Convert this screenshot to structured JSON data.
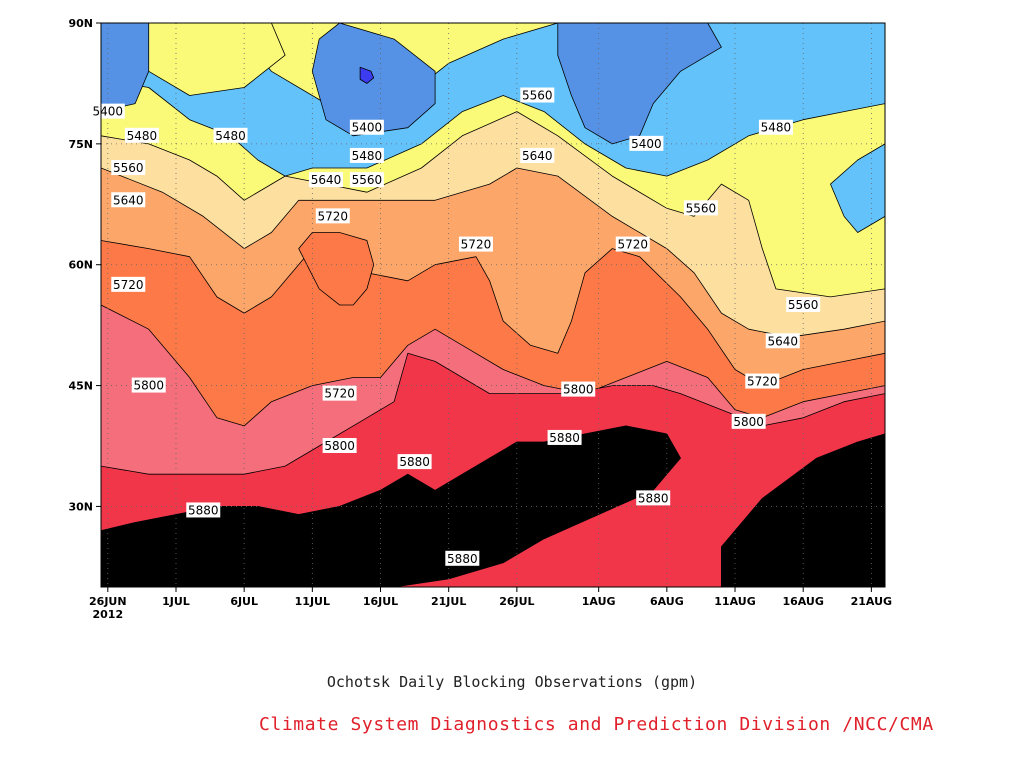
{
  "chart_data": {
    "type": "contour",
    "title": "Ochotsk Daily Blocking Observations (gpm)",
    "credit": "Climate System Diagnostics and Prediction Division /NCC/CMA",
    "x_ticks": [
      {
        "label": "26JUN",
        "sub": "2012",
        "day": 0
      },
      {
        "label": "1JUL",
        "day": 5
      },
      {
        "label": "6JUL",
        "day": 10
      },
      {
        "label": "11JUL",
        "day": 15
      },
      {
        "label": "16JUL",
        "day": 20
      },
      {
        "label": "21JUL",
        "day": 25
      },
      {
        "label": "26JUL",
        "day": 30
      },
      {
        "label": "1AUG",
        "day": 36
      },
      {
        "label": "6AUG",
        "day": 41
      },
      {
        "label": "11AUG",
        "day": 46
      },
      {
        "label": "16AUG",
        "day": 51
      },
      {
        "label": "21AUG",
        "day": 56
      }
    ],
    "y_ticks": [
      {
        "label": "30N",
        "lat": 30
      },
      {
        "label": "45N",
        "lat": 45
      },
      {
        "label": "60N",
        "lat": 60
      },
      {
        "label": "75N",
        "lat": 75
      },
      {
        "label": "90N",
        "lat": 90
      }
    ],
    "xlim": [
      -0.5,
      57
    ],
    "ylim": [
      20,
      90
    ],
    "grid": true,
    "levels": [
      5400,
      5480,
      5560,
      5640,
      5720,
      5800,
      5880
    ],
    "band_colors": [
      "#5592e6",
      "#63c2f9",
      "#fafa78",
      "#fde0a0",
      "#fda66a",
      "#fd7a48",
      "#f46e7b",
      "#f2364a"
    ],
    "ring_colors": {
      "5320": "#3c3cf0",
      "5400": "#5592e6",
      "5480": "#63c2f9",
      "5560": "#fafa78"
    },
    "contour_labels": [
      {
        "text": "5400",
        "day": 0,
        "lat": 79
      },
      {
        "text": "5480",
        "day": 2.5,
        "lat": 76
      },
      {
        "text": "5560",
        "day": 1.5,
        "lat": 72
      },
      {
        "text": "5640",
        "day": 1.5,
        "lat": 68
      },
      {
        "text": "5720",
        "day": 1.5,
        "lat": 57.5
      },
      {
        "text": "5800",
        "day": 3,
        "lat": 45
      },
      {
        "text": "5880",
        "day": 7,
        "lat": 29.5
      },
      {
        "text": "5480",
        "day": 9,
        "lat": 76
      },
      {
        "text": "5400",
        "day": 19,
        "lat": 77
      },
      {
        "text": "5480",
        "day": 19,
        "lat": 73.5
      },
      {
        "text": "5560",
        "day": 19,
        "lat": 70.5
      },
      {
        "text": "5640",
        "day": 16,
        "lat": 70.5
      },
      {
        "text": "5720",
        "day": 16.5,
        "lat": 66
      },
      {
        "text": "5720",
        "day": 17,
        "lat": 44
      },
      {
        "text": "5800",
        "day": 17,
        "lat": 37.5
      },
      {
        "text": "5880",
        "day": 22.5,
        "lat": 35.5
      },
      {
        "text": "5880",
        "day": 26,
        "lat": 23.5
      },
      {
        "text": "5720",
        "day": 27,
        "lat": 62.5
      },
      {
        "text": "5560",
        "day": 31.5,
        "lat": 81
      },
      {
        "text": "5640",
        "day": 31.5,
        "lat": 73.5
      },
      {
        "text": "5880",
        "day": 33.5,
        "lat": 38.5
      },
      {
        "text": "5800",
        "day": 34.5,
        "lat": 44.5
      },
      {
        "text": "5720",
        "day": 38.5,
        "lat": 62.5
      },
      {
        "text": "5400",
        "day": 39.5,
        "lat": 75
      },
      {
        "text": "5880",
        "day": 40,
        "lat": 31
      },
      {
        "text": "5560",
        "day": 43.5,
        "lat": 67
      },
      {
        "text": "5480",
        "day": 49,
        "lat": 77
      },
      {
        "text": "5720",
        "day": 48,
        "lat": 45.5
      },
      {
        "text": "5800",
        "day": 47,
        "lat": 40.5
      },
      {
        "text": "5640",
        "day": 49.5,
        "lat": 50.5
      },
      {
        "text": "5560",
        "day": 51,
        "lat": 55
      }
    ]
  }
}
